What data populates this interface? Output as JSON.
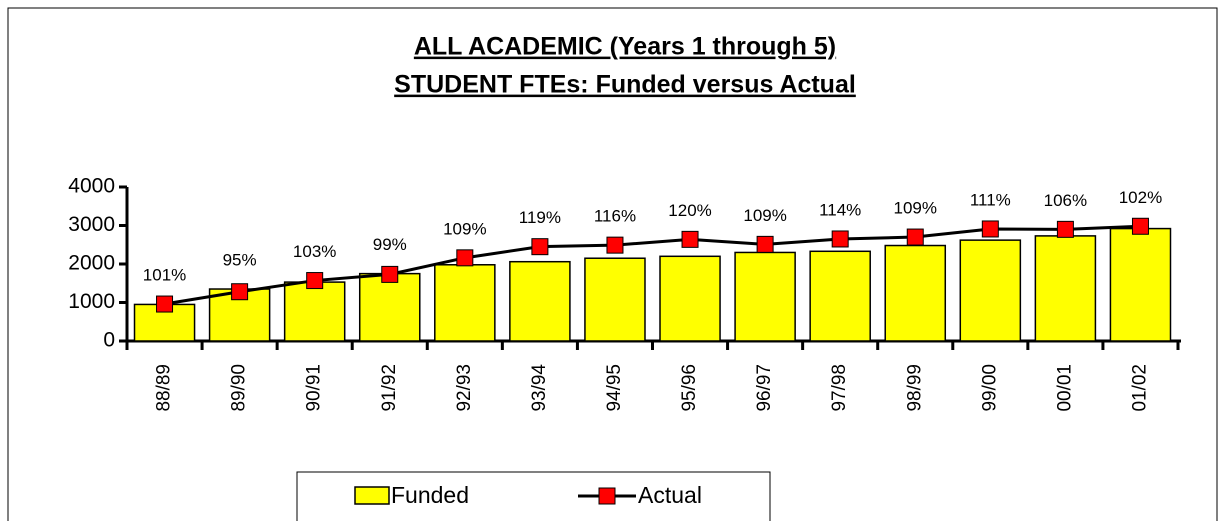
{
  "chart_data": {
    "type": "bar_line",
    "title": "ALL ACADEMIC (Years 1 through 5)",
    "subtitle": "STUDENT FTEs: Funded versus Actual",
    "categories": [
      "88/89",
      "89/90",
      "90/91",
      "91/92",
      "92/93",
      "93/94",
      "94/95",
      "95/96",
      "96/97",
      "97/98",
      "98/99",
      "99/00",
      "00/01",
      "01/02"
    ],
    "series": [
      {
        "name": "Funded",
        "color": "#ffff00",
        "values": [
          950,
          1350,
          1530,
          1750,
          1980,
          2060,
          2150,
          2200,
          2300,
          2330,
          2480,
          2620,
          2730,
          2920
        ]
      },
      {
        "name": "Actual",
        "color": "#ff0000",
        "values": [
          960,
          1280,
          1570,
          1730,
          2160,
          2450,
          2490,
          2640,
          2510,
          2650,
          2700,
          2910,
          2900,
          2980
        ]
      }
    ],
    "annotations": [
      "101%",
      "95%",
      "103%",
      "99%",
      "109%",
      "119%",
      "116%",
      "120%",
      "109%",
      "114%",
      "109%",
      "111%",
      "106%",
      "102%"
    ],
    "ylim": [
      0,
      4000
    ],
    "yticks": [
      0,
      1000,
      2000,
      3000,
      4000
    ],
    "grid": false,
    "legend": "bottom"
  }
}
